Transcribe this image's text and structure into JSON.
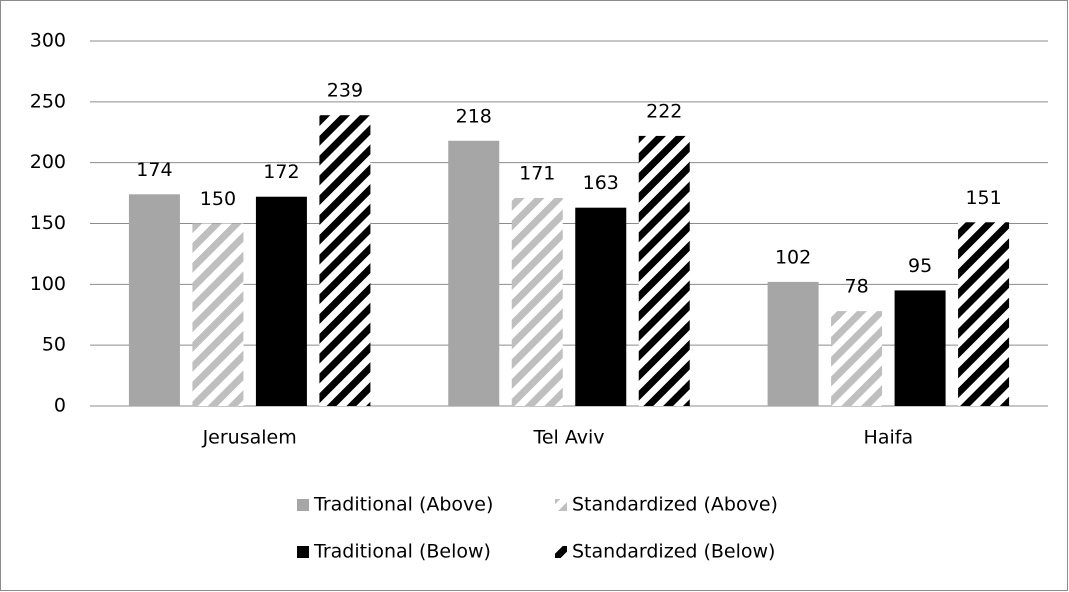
{
  "chart_data": {
    "type": "bar",
    "categories": [
      "Jerusalem",
      "Tel Aviv",
      "Haifa"
    ],
    "series": [
      {
        "name": "Traditional (Above)",
        "color": "#a6a6a6",
        "hatch": false,
        "values": [
          174,
          218,
          102
        ]
      },
      {
        "name": "Standardized (Above)",
        "color": "#bfbfbf",
        "hatch": true,
        "values": [
          150,
          171,
          78
        ]
      },
      {
        "name": "Traditional (Below)",
        "color": "#000000",
        "hatch": false,
        "values": [
          172,
          163,
          95
        ]
      },
      {
        "name": "Standardized (Below)",
        "color": "#000000",
        "hatch": true,
        "values": [
          239,
          222,
          151
        ]
      }
    ],
    "ylim": [
      0,
      300
    ],
    "yticks": [
      0,
      50,
      100,
      150,
      200,
      250,
      300
    ],
    "grid": true,
    "legend": "bottom"
  }
}
